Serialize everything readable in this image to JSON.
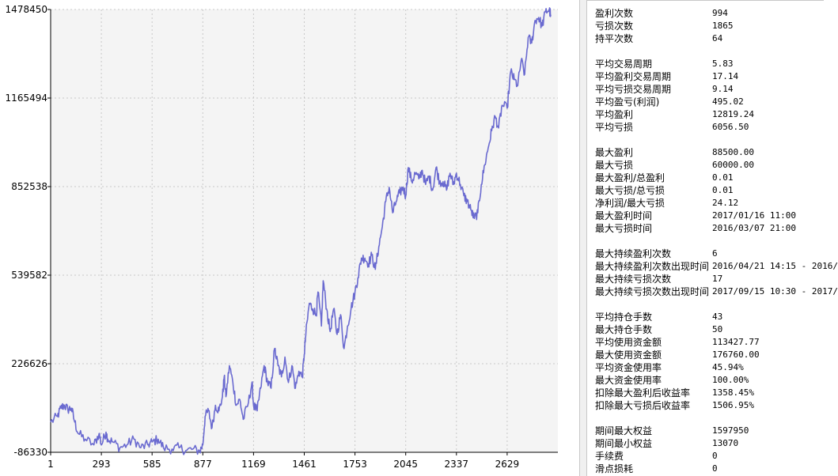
{
  "chart_data": {
    "type": "line",
    "title": "",
    "xlabel": "",
    "ylabel": "",
    "color": "#6a6ad0",
    "background": "#f4f4f4",
    "grid": true,
    "xlim": [
      1,
      2921
    ],
    "ylim": [
      -86330,
      1478450
    ],
    "x_ticks": [
      1,
      293,
      585,
      877,
      1169,
      1461,
      1753,
      2045,
      2337,
      2629
    ],
    "y_ticks": [
      -86330,
      226626,
      539582,
      852538,
      1165494,
      1478450
    ],
    "series": [
      {
        "values": [
          [
            1,
            20000
          ],
          [
            40,
            40000
          ],
          [
            60,
            70000
          ],
          [
            80,
            80000
          ],
          [
            100,
            65000
          ],
          [
            120,
            70000
          ],
          [
            140,
            20000
          ],
          [
            160,
            -20000
          ],
          [
            200,
            -40000
          ],
          [
            250,
            -60000
          ],
          [
            280,
            -20000
          ],
          [
            293,
            -60000
          ],
          [
            320,
            -15000
          ],
          [
            330,
            -40000
          ],
          [
            360,
            -50000
          ],
          [
            400,
            -70000
          ],
          [
            440,
            -60000
          ],
          [
            480,
            -40000
          ],
          [
            520,
            -70000
          ],
          [
            560,
            -60000
          ],
          [
            585,
            -50000
          ],
          [
            620,
            -40000
          ],
          [
            650,
            -70000
          ],
          [
            700,
            -75000
          ],
          [
            740,
            -70000
          ],
          [
            780,
            -80000
          ],
          [
            820,
            -75000
          ],
          [
            860,
            -82000
          ],
          [
            877,
            -60000
          ],
          [
            890,
            40000
          ],
          [
            910,
            60000
          ],
          [
            930,
            0
          ],
          [
            950,
            80000
          ],
          [
            970,
            60000
          ],
          [
            990,
            110000
          ],
          [
            1000,
            180000
          ],
          [
            1010,
            110000
          ],
          [
            1030,
            220000
          ],
          [
            1050,
            160000
          ],
          [
            1070,
            80000
          ],
          [
            1090,
            100000
          ],
          [
            1110,
            30000
          ],
          [
            1140,
            90000
          ],
          [
            1160,
            160000
          ],
          [
            1169,
            80000
          ],
          [
            1190,
            60000
          ],
          [
            1210,
            140000
          ],
          [
            1230,
            220000
          ],
          [
            1250,
            160000
          ],
          [
            1270,
            140000
          ],
          [
            1290,
            280000
          ],
          [
            1310,
            220000
          ],
          [
            1330,
            180000
          ],
          [
            1350,
            250000
          ],
          [
            1370,
            160000
          ],
          [
            1390,
            220000
          ],
          [
            1410,
            140000
          ],
          [
            1430,
            200000
          ],
          [
            1450,
            180000
          ],
          [
            1461,
            260000
          ],
          [
            1470,
            330000
          ],
          [
            1490,
            440000
          ],
          [
            1510,
            420000
          ],
          [
            1530,
            400000
          ],
          [
            1540,
            480000
          ],
          [
            1560,
            360000
          ],
          [
            1570,
            520000
          ],
          [
            1590,
            420000
          ],
          [
            1610,
            340000
          ],
          [
            1630,
            420000
          ],
          [
            1650,
            330000
          ],
          [
            1670,
            400000
          ],
          [
            1690,
            280000
          ],
          [
            1710,
            360000
          ],
          [
            1730,
            420000
          ],
          [
            1753,
            480000
          ],
          [
            1770,
            530000
          ],
          [
            1790,
            600000
          ],
          [
            1810,
            600000
          ],
          [
            1830,
            580000
          ],
          [
            1850,
            610000
          ],
          [
            1870,
            560000
          ],
          [
            1890,
            640000
          ],
          [
            1910,
            710000
          ],
          [
            1930,
            800000
          ],
          [
            1950,
            850000
          ],
          [
            1970,
            760000
          ],
          [
            1990,
            800000
          ],
          [
            2010,
            830000
          ],
          [
            2030,
            850000
          ],
          [
            2045,
            820000
          ],
          [
            2060,
            920000
          ],
          [
            2080,
            870000
          ],
          [
            2100,
            900000
          ],
          [
            2120,
            880000
          ],
          [
            2140,
            910000
          ],
          [
            2160,
            860000
          ],
          [
            2180,
            890000
          ],
          [
            2200,
            840000
          ],
          [
            2220,
            920000
          ],
          [
            2240,
            870000
          ],
          [
            2260,
            870000
          ],
          [
            2280,
            840000
          ],
          [
            2300,
            900000
          ],
          [
            2320,
            860000
          ],
          [
            2337,
            900000
          ],
          [
            2360,
            860000
          ],
          [
            2380,
            820000
          ],
          [
            2400,
            800000
          ],
          [
            2420,
            770000
          ],
          [
            2440,
            740000
          ],
          [
            2460,
            760000
          ],
          [
            2480,
            860000
          ],
          [
            2500,
            930000
          ],
          [
            2520,
            990000
          ],
          [
            2540,
            1050000
          ],
          [
            2560,
            1100000
          ],
          [
            2580,
            1060000
          ],
          [
            2600,
            1140000
          ],
          [
            2629,
            1130000
          ],
          [
            2650,
            1260000
          ],
          [
            2670,
            1230000
          ],
          [
            2690,
            1210000
          ],
          [
            2710,
            1300000
          ],
          [
            2730,
            1250000
          ],
          [
            2750,
            1380000
          ],
          [
            2770,
            1360000
          ],
          [
            2790,
            1440000
          ],
          [
            2810,
            1450000
          ],
          [
            2830,
            1420000
          ],
          [
            2850,
            1470000
          ],
          [
            2870,
            1478000
          ],
          [
            2880,
            1460000
          ]
        ]
      }
    ]
  },
  "stats_groups": [
    [
      {
        "label": "盈利次数",
        "value": "994"
      },
      {
        "label": "亏损次数",
        "value": "1865"
      },
      {
        "label": "持平次数",
        "value": "64"
      }
    ],
    [
      {
        "label": "平均交易周期",
        "value": "5.83"
      },
      {
        "label": "平均盈利交易周期",
        "value": "17.14"
      },
      {
        "label": "平均亏损交易周期",
        "value": "9.14"
      },
      {
        "label": "平均盈亏(利润)",
        "value": "495.02"
      },
      {
        "label": "平均盈利",
        "value": "12819.24"
      },
      {
        "label": "平均亏损",
        "value": "6056.50"
      }
    ],
    [
      {
        "label": "最大盈利",
        "value": "88500.00"
      },
      {
        "label": "最大亏损",
        "value": "60000.00"
      },
      {
        "label": "最大盈利/总盈利",
        "value": "0.01"
      },
      {
        "label": "最大亏损/总亏损",
        "value": "0.01"
      },
      {
        "label": "净利润/最大亏损",
        "value": "24.12"
      },
      {
        "label": "最大盈利时间",
        "value": "2017/01/16 11:00"
      },
      {
        "label": "最大亏损时间",
        "value": "2016/03/07 21:00"
      }
    ],
    [
      {
        "label": "最大持续盈利次数",
        "value": "6"
      },
      {
        "label": "最大持续盈利次数出现时间",
        "value": "2016/04/21 14:15 - 2016/"
      },
      {
        "label": "最大持续亏损次数",
        "value": "17"
      },
      {
        "label": "最大持续亏损次数出现时间",
        "value": "2017/09/15 10:30 - 2017/"
      }
    ],
    [
      {
        "label": "平均持仓手数",
        "value": "43"
      },
      {
        "label": "最大持仓手数",
        "value": "50"
      },
      {
        "label": "平均使用资金额",
        "value": "113427.77"
      },
      {
        "label": "最大使用资金额",
        "value": "176760.00"
      },
      {
        "label": "平均资金使用率",
        "value": "45.94%"
      },
      {
        "label": "最大资金使用率",
        "value": "100.00%"
      },
      {
        "label": "扣除最大盈利后收益率",
        "value": "1358.45%"
      },
      {
        "label": "扣除最大亏损后收益率",
        "value": "1506.95%"
      }
    ],
    [
      {
        "label": "期间最大权益",
        "value": "1597950"
      },
      {
        "label": "期间最小权益",
        "value": "13070"
      },
      {
        "label": "手续费",
        "value": "0"
      },
      {
        "label": "滑点损耗",
        "value": "0"
      }
    ]
  ]
}
